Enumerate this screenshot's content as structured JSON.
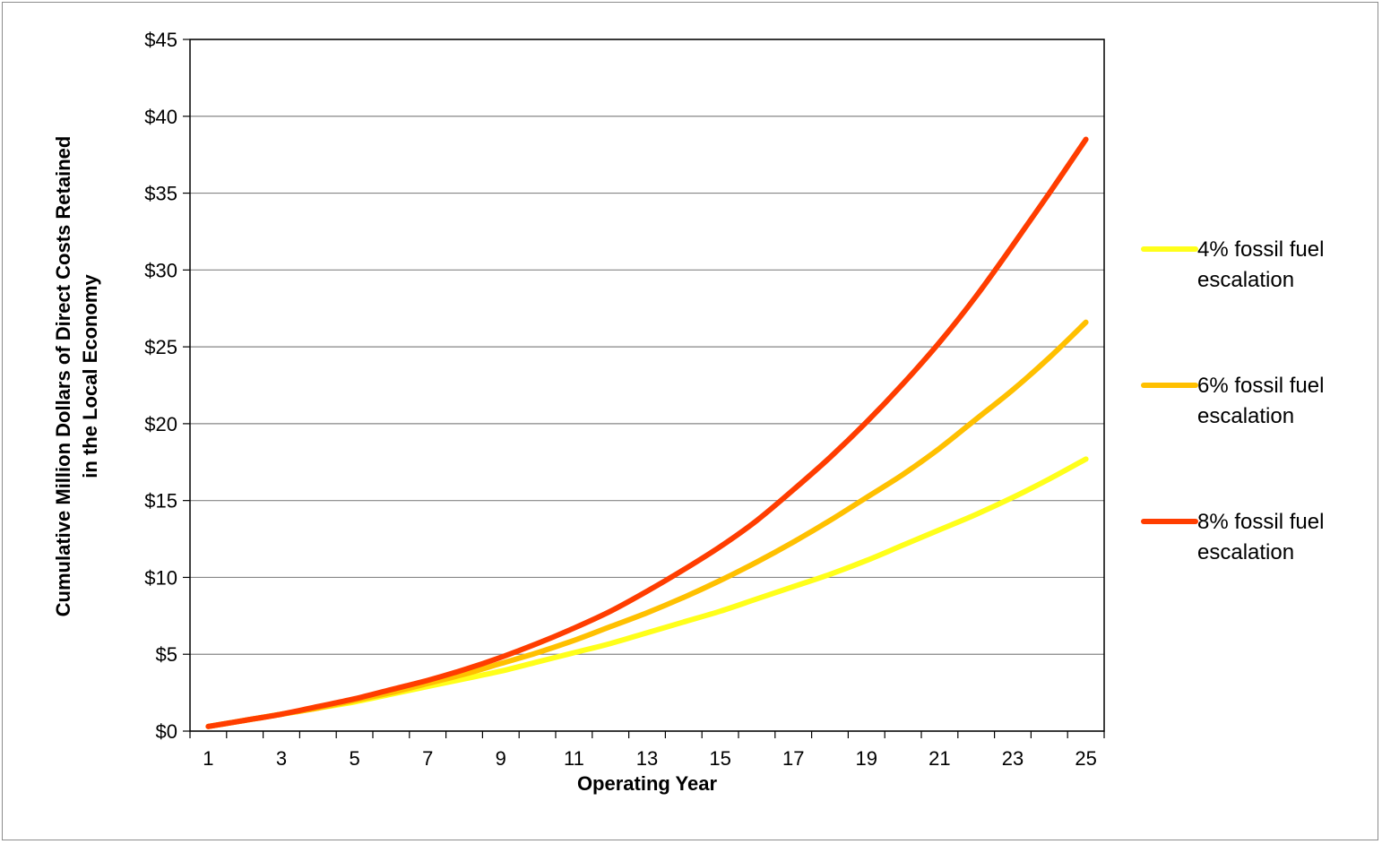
{
  "chart_data": {
    "type": "line",
    "xlabel": "Operating Year",
    "ylabel_lines": [
      "Cumulative Million Dollars of Direct Costs  Retained",
      "in the Local Economy"
    ],
    "x": [
      1,
      2,
      3,
      4,
      5,
      6,
      7,
      8,
      9,
      10,
      11,
      12,
      13,
      14,
      15,
      16,
      17,
      18,
      19,
      20,
      21,
      22,
      23,
      24,
      25
    ],
    "x_tick_labels": [
      "1",
      "3",
      "5",
      "7",
      "9",
      "11",
      "13",
      "15",
      "17",
      "19",
      "21",
      "23",
      "25"
    ],
    "ylim": [
      0,
      45
    ],
    "y_ticks": [
      0,
      5,
      10,
      15,
      20,
      25,
      30,
      35,
      40,
      45
    ],
    "y_tick_labels": [
      "$0",
      "$5",
      "$10",
      "$15",
      "$20",
      "$25",
      "$30",
      "$35",
      "$40",
      "$45"
    ],
    "grid": "horizontal",
    "legend_position": "right",
    "series": [
      {
        "name_lines": [
          "4% fossil fuel",
          "escalation"
        ],
        "color": "#ffff1a",
        "values": [
          0.3,
          0.7,
          1.1,
          1.5,
          1.9,
          2.4,
          2.9,
          3.4,
          3.9,
          4.5,
          5.1,
          5.7,
          6.4,
          7.1,
          7.8,
          8.6,
          9.4,
          10.2,
          11.1,
          12.1,
          13.1,
          14.1,
          15.2,
          16.4,
          17.7
        ]
      },
      {
        "name_lines": [
          "6% fossil fuel",
          "escalation"
        ],
        "color": "#ffc000",
        "values": [
          0.3,
          0.7,
          1.1,
          1.5,
          2.0,
          2.5,
          3.1,
          3.7,
          4.4,
          5.1,
          5.9,
          6.8,
          7.7,
          8.7,
          9.8,
          11.0,
          12.3,
          13.7,
          15.2,
          16.7,
          18.4,
          20.3,
          22.2,
          24.3,
          26.6
        ]
      },
      {
        "name_lines": [
          "8% fossil fuel",
          "escalation"
        ],
        "color": "#ff3d00",
        "values": [
          0.3,
          0.7,
          1.1,
          1.6,
          2.1,
          2.7,
          3.3,
          4.0,
          4.8,
          5.7,
          6.7,
          7.8,
          9.1,
          10.5,
          12.0,
          13.7,
          15.7,
          17.8,
          20.1,
          22.6,
          25.3,
          28.3,
          31.6,
          35.0,
          38.5
        ]
      }
    ]
  }
}
